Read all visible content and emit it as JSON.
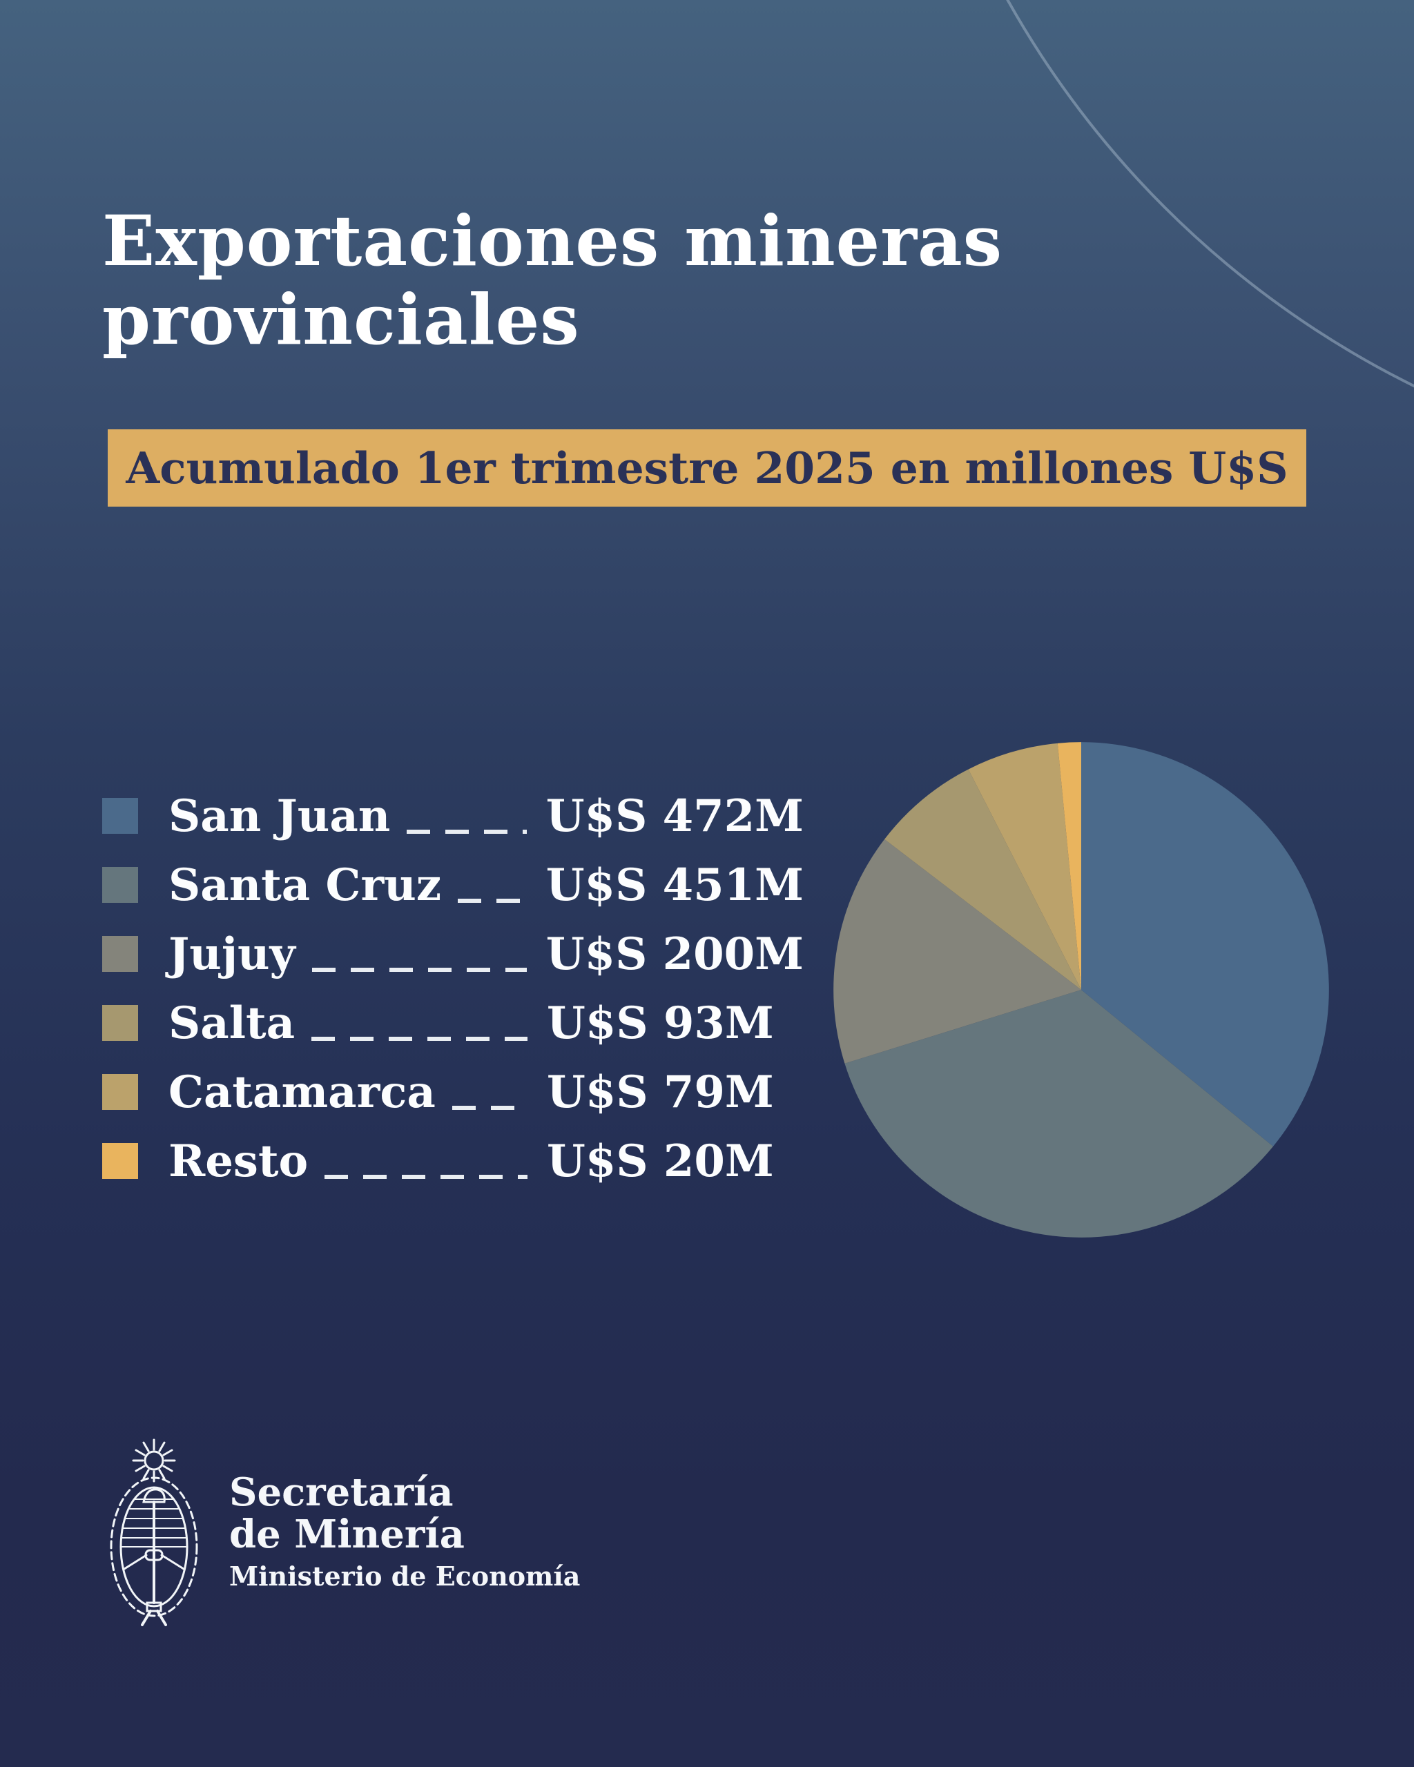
{
  "header": {
    "title_line1": "Exportaciones mineras",
    "title_line2": "provinciales",
    "subtitle": "Acumulado 1er trimestre 2025 en millones U$S"
  },
  "chart_data": {
    "type": "pie",
    "title": "Exportaciones mineras provinciales",
    "subtitle": "Acumulado 1er trimestre 2025 en millones U$S",
    "unit": "millones U$S",
    "legend_position": "left",
    "start_angle_deg": 0,
    "direction": "clockwise",
    "slices": [
      {
        "label": "San Juan",
        "value": 472,
        "value_label": "U$S 472M",
        "color": "#4B6A8B"
      },
      {
        "label": "Santa Cruz",
        "value": 451,
        "value_label": "U$S 451M",
        "color": "#65767D"
      },
      {
        "label": "Jujuy",
        "value": 200,
        "value_label": "U$S 200M",
        "color": "#84847B"
      },
      {
        "label": "Salta",
        "value": 93,
        "value_label": "U$S 93M",
        "color": "#A6986F"
      },
      {
        "label": "Catamarca",
        "value": 79,
        "value_label": "U$S 79M",
        "color": "#BBA26B"
      },
      {
        "label": "Resto",
        "value": 20,
        "value_label": "U$S 20M",
        "color": "#E9B45E"
      }
    ]
  },
  "footer": {
    "org_line1": "Secretaría",
    "org_line2": "de Minería",
    "org_line3": "Ministerio de Economía"
  },
  "colors": {
    "background_top": "#45627F",
    "background_bottom": "#242B4F",
    "banner_background": "#DDAE62",
    "banner_text": "#2A3157",
    "title_text": "#FFFFFF",
    "legend_text": "#FCFDFE",
    "leader_dash": "#E9EDF2",
    "decorative_arc": "#94A9BC"
  }
}
